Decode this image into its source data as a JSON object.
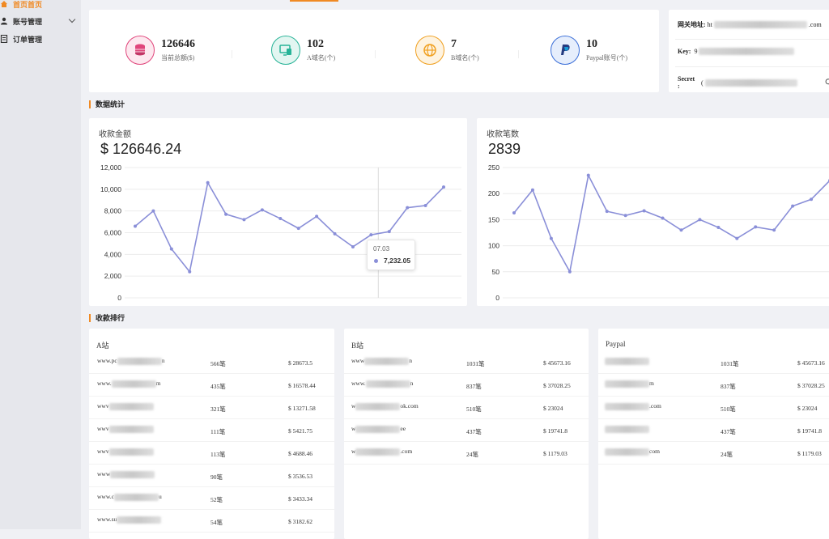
{
  "sidebar": {
    "items": [
      {
        "label": "首页首页",
        "active": true
      },
      {
        "label": "账号管理",
        "active": false
      },
      {
        "label": "订单管理",
        "active": false
      }
    ]
  },
  "stats": [
    {
      "value": "126646",
      "label": "当前总额($)",
      "icon": "coins-icon",
      "color": "#e0457b"
    },
    {
      "value": "102",
      "label": "A域名(个)",
      "icon": "monitor-icon",
      "color": "#27b397"
    },
    {
      "value": "7",
      "label": "B域名(个)",
      "icon": "globe-icon",
      "color": "#f0a020"
    },
    {
      "value": "10",
      "label": "Paypal账号(个)",
      "icon": "paypal-icon",
      "color": "#3b6fd8"
    }
  ],
  "gateway": {
    "address_label": "网关地址:",
    "address_prefix": "ht",
    "address_suffix": ".com",
    "key_label": "Key:",
    "key_prefix": "9",
    "secret_label": "Secret :",
    "secret_prefix": "("
  },
  "sections": {
    "stats_title": "数据统计",
    "ranking_title": "收款排行"
  },
  "chart_amount": {
    "title": "收款金额",
    "total": "$ 126646.24",
    "tooltip_date": "07.03",
    "tooltip_value": "7,232.05"
  },
  "chart_count": {
    "title": "收款笔数",
    "total": "2839"
  },
  "chart_data": [
    {
      "type": "line",
      "title": "收款金额",
      "ylim": [
        0,
        12000
      ],
      "yticks": [
        "0",
        "2,000",
        "4,000",
        "6,000",
        "8,000",
        "10,000",
        "12,000"
      ],
      "values": [
        6600,
        8000,
        4500,
        2400,
        10600,
        7700,
        7200,
        8100,
        7300,
        6400,
        7500,
        5900,
        4700,
        5800,
        6100,
        8300,
        8500,
        10200
      ],
      "color": "#8a8fd8"
    },
    {
      "type": "line",
      "title": "收款笔数",
      "ylim": [
        0,
        250
      ],
      "yticks": [
        "0",
        "50",
        "100",
        "150",
        "200",
        "250"
      ],
      "values": [
        163,
        207,
        114,
        50,
        235,
        166,
        158,
        167,
        153,
        130,
        150,
        135,
        114,
        136,
        130,
        176,
        189,
        225
      ],
      "color": "#8a8fd8"
    }
  ],
  "ranking": {
    "a": {
      "title": "A站",
      "rows": [
        {
          "site_prefix": "www.pc",
          "site_suffix": "n",
          "count": "566笔",
          "amount": "$ 28673.5"
        },
        {
          "site_prefix": "www.",
          "site_suffix": "m",
          "count": "435笔",
          "amount": "$ 16578.44"
        },
        {
          "site_prefix": "wwv",
          "site_suffix": "",
          "count": "321笔",
          "amount": "$ 13271.58"
        },
        {
          "site_prefix": "wwv",
          "site_suffix": "",
          "count": "111笔",
          "amount": "$ 5421.75"
        },
        {
          "site_prefix": "wwv",
          "site_suffix": "",
          "count": "113笔",
          "amount": "$ 4688.46"
        },
        {
          "site_prefix": "www",
          "site_suffix": "",
          "count": "90笔",
          "amount": "$ 3536.53"
        },
        {
          "site_prefix": "www.c",
          "site_suffix": "u",
          "count": "52笔",
          "amount": "$ 3433.34"
        },
        {
          "site_prefix": "www.su",
          "site_suffix": "",
          "count": "54笔",
          "amount": "$ 3182.62"
        }
      ]
    },
    "b": {
      "title": "B站",
      "rows": [
        {
          "site_prefix": "www",
          "site_suffix": "n",
          "count": "1031笔",
          "amount": "$ 45673.16"
        },
        {
          "site_prefix": "www.",
          "site_suffix": "n",
          "count": "837笔",
          "amount": "$ 37028.25"
        },
        {
          "site_prefix": "w",
          "site_suffix": "ok.com",
          "count": "510笔",
          "amount": "$ 23024"
        },
        {
          "site_prefix": "w",
          "site_suffix": "ee",
          "count": "437笔",
          "amount": "$ 19741.8"
        },
        {
          "site_prefix": "w",
          "site_suffix": ".com",
          "count": "24笔",
          "amount": "$ 1179.03"
        }
      ]
    },
    "paypal": {
      "title": "Paypal",
      "rows": [
        {
          "site_prefix": "",
          "site_suffix": "",
          "count": "1031笔",
          "amount": "$ 45673.16"
        },
        {
          "site_prefix": "",
          "site_suffix": "m",
          "count": "837笔",
          "amount": "$ 37028.25"
        },
        {
          "site_prefix": "",
          "site_suffix": ".com",
          "count": "510笔",
          "amount": "$ 23024"
        },
        {
          "site_prefix": "",
          "site_suffix": "",
          "count": "437笔",
          "amount": "$ 19741.8"
        },
        {
          "site_prefix": "",
          "site_suffix": "com",
          "count": "24笔",
          "amount": "$ 1179.03"
        }
      ]
    }
  }
}
